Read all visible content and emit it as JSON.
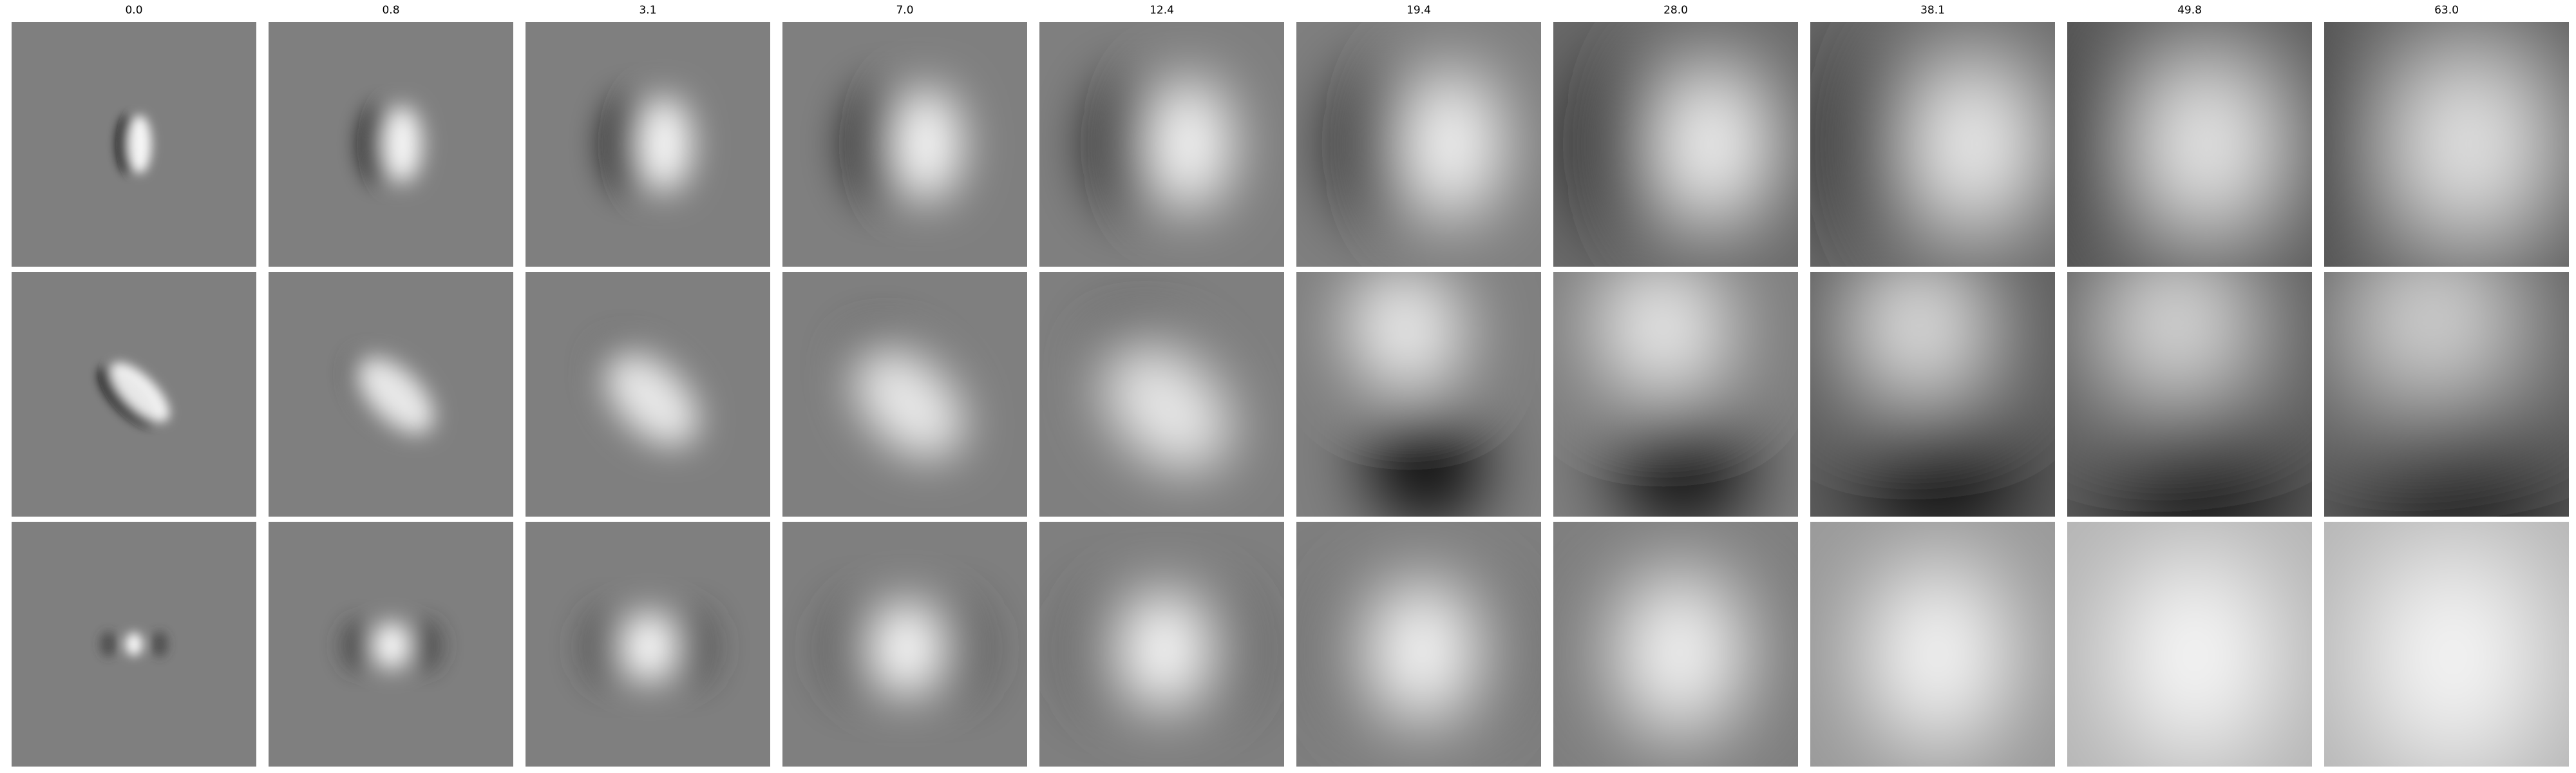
{
  "figure": {
    "column_titles": [
      "0.0",
      "0.8",
      "3.1",
      "7.0",
      "12.4",
      "19.4",
      "28.0",
      "38.1",
      "49.8",
      "63.0"
    ],
    "rows": 3,
    "colormap": "gray",
    "background_color": "#ffffff",
    "panel_gray": "#7f7f7f"
  }
}
